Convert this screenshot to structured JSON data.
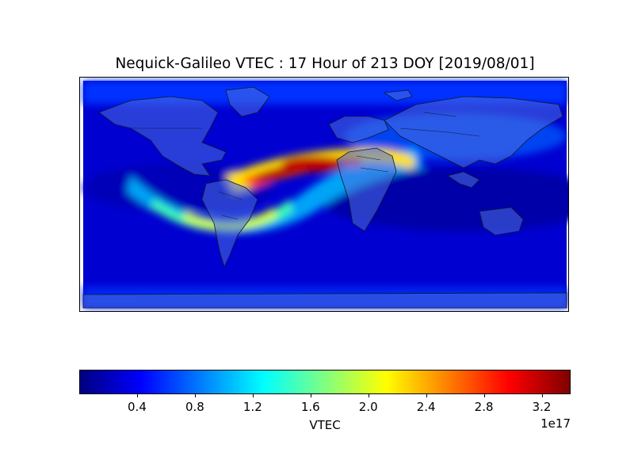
{
  "title": "Nequick-Galileo VTEC : 17 Hour of 213 DOY [2019/08/01]",
  "colorbar": {
    "label": "VTEC",
    "exponent": "1e17",
    "range": [
      0.0,
      3.4
    ],
    "ticks": [
      "0.4",
      "0.8",
      "1.2",
      "1.6",
      "2.0",
      "2.4",
      "2.8",
      "3.2"
    ],
    "colormap": "jet"
  },
  "map": {
    "projection": "equirectangular",
    "region": "global",
    "lon_range": [
      -180,
      180
    ],
    "lat_range": [
      -90,
      90
    ],
    "basemap_features": [
      "coastlines",
      "country borders"
    ],
    "peak_region": "tropical Atlantic / West Africa band"
  }
}
